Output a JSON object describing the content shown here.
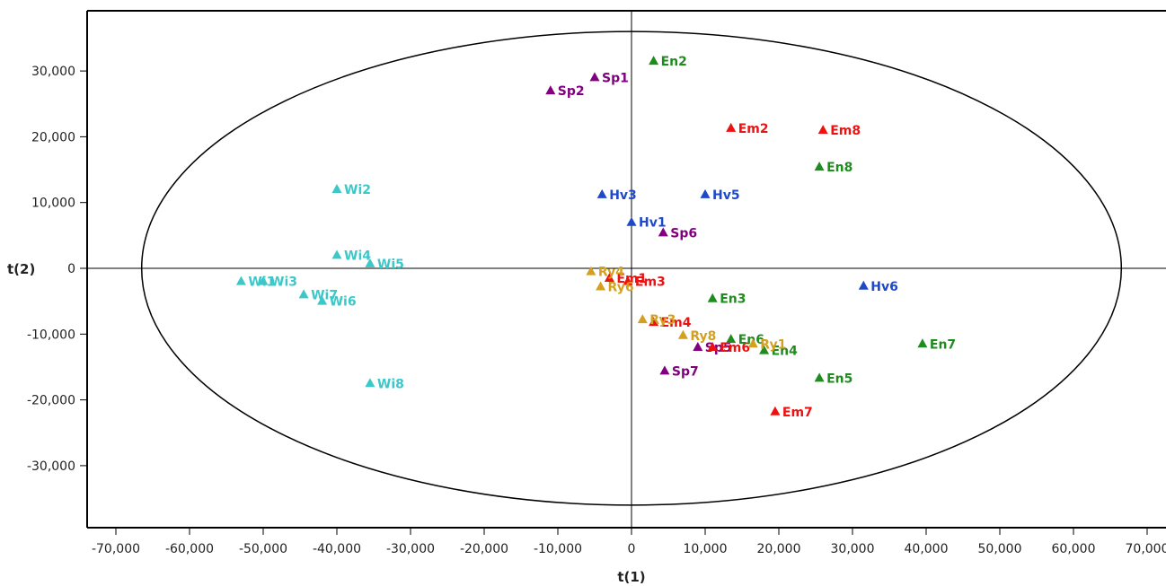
{
  "chart_data": {
    "type": "scatter",
    "xlabel": "t(1)",
    "ylabel": "t(2)",
    "xlim": [
      -74000,
      72000
    ],
    "ylim": [
      -39000,
      39000
    ],
    "xticks": [
      -70000,
      -60000,
      -50000,
      -40000,
      -30000,
      -20000,
      -10000,
      0,
      10000,
      20000,
      30000,
      40000,
      50000,
      60000,
      70000
    ],
    "yticks": [
      -30000,
      -20000,
      -10000,
      0,
      10000,
      20000,
      30000
    ],
    "xtick_labels": [
      "-70,000",
      "-60,000",
      "-50,000",
      "-40,000",
      "-30,000",
      "-20,000",
      "-10,000",
      "0",
      "10,000",
      "20,000",
      "30,000",
      "40,000",
      "50,000",
      "60,000",
      "70,000"
    ],
    "ytick_labels": [
      "-30,000",
      "-20,000",
      "-10,000",
      "0",
      "10,000",
      "20,000",
      "30,000"
    ],
    "ellipse": {
      "rx": 66500,
      "ry": 36000
    },
    "grid": false,
    "series": [
      {
        "color": "#3cc8c8",
        "points": [
          {
            "label": "Wi1",
            "x": -53000,
            "y": -2000
          },
          {
            "label": "Wi2",
            "x": -40000,
            "y": 12000
          },
          {
            "label": "Wi3",
            "x": -50000,
            "y": -2000
          },
          {
            "label": "Wi4",
            "x": -40000,
            "y": 2000
          },
          {
            "label": "Wi5",
            "x": -35500,
            "y": 700
          },
          {
            "label": "Wi6",
            "x": -42000,
            "y": -5000
          },
          {
            "label": "Wi7",
            "x": -44500,
            "y": -4000
          },
          {
            "label": "Wi8",
            "x": -35500,
            "y": -17500
          }
        ]
      },
      {
        "color": "#800080",
        "points": [
          {
            "label": "Sp1",
            "x": -5000,
            "y": 29000
          },
          {
            "label": "Sp2",
            "x": -11000,
            "y": 27000
          },
          {
            "label": "Sp5",
            "x": 9000,
            "y": -12000
          },
          {
            "label": "Sp6",
            "x": 4300,
            "y": 5400
          },
          {
            "label": "Sp7",
            "x": 4500,
            "y": -15600
          }
        ]
      },
      {
        "color": "#1e49c8",
        "points": [
          {
            "label": "Hv1",
            "x": 0,
            "y": 7000
          },
          {
            "label": "Hv3",
            "x": -4000,
            "y": 11200
          },
          {
            "label": "Hv5",
            "x": 10000,
            "y": 11200
          },
          {
            "label": "Hv6",
            "x": 31500,
            "y": -2700
          }
        ]
      },
      {
        "color": "#ee1111",
        "points": [
          {
            "label": "Em1",
            "x": -3000,
            "y": -1500
          },
          {
            "label": "Em2",
            "x": 13500,
            "y": 21300
          },
          {
            "label": "Em3",
            "x": -500,
            "y": -2000
          },
          {
            "label": "Em4",
            "x": 3000,
            "y": -8200
          },
          {
            "label": "Em6",
            "x": 11000,
            "y": -12000
          },
          {
            "label": "Em7",
            "x": 19500,
            "y": -21800
          },
          {
            "label": "Em8",
            "x": 26000,
            "y": 21000
          }
        ]
      },
      {
        "color": "#1e8c1e",
        "points": [
          {
            "label": "En2",
            "x": 3000,
            "y": 31500
          },
          {
            "label": "En3",
            "x": 11000,
            "y": -4600
          },
          {
            "label": "En4",
            "x": 18000,
            "y": -12500
          },
          {
            "label": "En5",
            "x": 25500,
            "y": -16700
          },
          {
            "label": "En6",
            "x": 13500,
            "y": -10800
          },
          {
            "label": "En7",
            "x": 39500,
            "y": -11500
          },
          {
            "label": "En8",
            "x": 25500,
            "y": 15400
          }
        ]
      },
      {
        "color": "#d4a020",
        "points": [
          {
            "label": "Ry1",
            "x": 16500,
            "y": -11500
          },
          {
            "label": "Ry3",
            "x": 1500,
            "y": -7800
          },
          {
            "label": "Ry4",
            "x": -5500,
            "y": -500
          },
          {
            "label": "Ry6",
            "x": -4200,
            "y": -2800
          },
          {
            "label": "Ry8",
            "x": 7000,
            "y": -10200
          }
        ]
      }
    ]
  }
}
